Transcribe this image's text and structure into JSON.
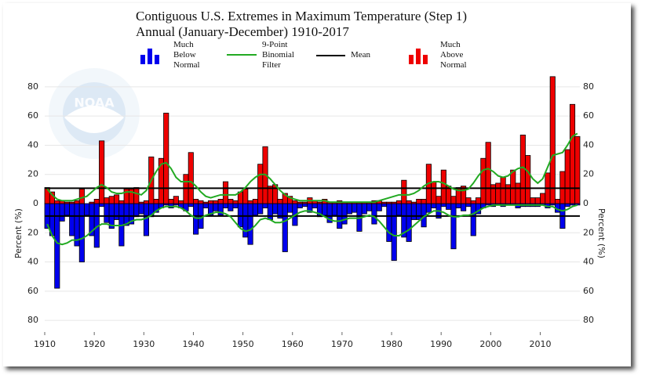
{
  "chart_data": {
    "type": "bar",
    "title": "Contiguous U.S. Extremes in Maximum Temperature (Step 1)",
    "subtitle": "Annual (January-December) 1910-2017",
    "ylabel": "Percent (%)",
    "logo": "NOAA",
    "x": [
      1910,
      1911,
      1912,
      1913,
      1914,
      1915,
      1916,
      1917,
      1918,
      1919,
      1920,
      1921,
      1922,
      1923,
      1924,
      1925,
      1926,
      1927,
      1928,
      1929,
      1930,
      1931,
      1932,
      1933,
      1934,
      1935,
      1936,
      1937,
      1938,
      1939,
      1940,
      1941,
      1942,
      1943,
      1944,
      1945,
      1946,
      1947,
      1948,
      1949,
      1950,
      1951,
      1952,
      1953,
      1954,
      1955,
      1956,
      1957,
      1958,
      1959,
      1960,
      1961,
      1962,
      1963,
      1964,
      1965,
      1966,
      1967,
      1968,
      1969,
      1970,
      1971,
      1972,
      1973,
      1974,
      1975,
      1976,
      1977,
      1978,
      1979,
      1980,
      1981,
      1982,
      1983,
      1984,
      1985,
      1986,
      1987,
      1988,
      1989,
      1990,
      1991,
      1992,
      1993,
      1994,
      1995,
      1996,
      1997,
      1998,
      1999,
      2000,
      2001,
      2002,
      2003,
      2004,
      2005,
      2006,
      2007,
      2008,
      2009,
      2010,
      2011,
      2012,
      2013,
      2014,
      2015,
      2016,
      2017
    ],
    "xlim": [
      1910,
      2018
    ],
    "xticks": [
      1910,
      1920,
      1930,
      1940,
      1950,
      1960,
      1970,
      1980,
      1990,
      2000,
      2010
    ],
    "ylim": [
      -88,
      88
    ],
    "yticks": [
      {
        "value": -80,
        "label": "80"
      },
      {
        "value": -60,
        "label": "60"
      },
      {
        "value": -40,
        "label": "40"
      },
      {
        "value": -20,
        "label": "20"
      },
      0,
      20,
      40,
      60,
      80
    ],
    "grid": true,
    "series": [
      {
        "name": "Much Below Normal",
        "color": "#0000ee",
        "values": [
          -17,
          -22,
          -58,
          -12,
          -8,
          -22,
          -29,
          -40,
          -8,
          -22,
          -30,
          -2,
          -13,
          -17,
          -11,
          -29,
          -15,
          -14,
          -9,
          -7,
          -22,
          -9,
          -6,
          -3,
          -1,
          -3,
          -1,
          -3,
          -5,
          -2,
          -21,
          -17,
          -3,
          -8,
          -5,
          -8,
          -3,
          -5,
          -3,
          -16,
          -23,
          -28,
          -8,
          -7,
          -3,
          -11,
          -7,
          -10,
          -33,
          -6,
          -15,
          -3,
          -2,
          -6,
          -3,
          -9,
          -8,
          -13,
          -8,
          -17,
          -14,
          -7,
          -6,
          -19,
          -7,
          -5,
          -14,
          -5,
          -2,
          -26,
          -39,
          -8,
          -23,
          -26,
          -11,
          -11,
          -16,
          -6,
          -3,
          -10,
          -2,
          -4,
          -31,
          -3,
          -5,
          -2,
          -22,
          -7,
          -3,
          -1,
          -2,
          -1,
          -2,
          -1,
          -1,
          -3,
          -2,
          -2,
          -2,
          -2,
          -1,
          -3,
          -1,
          -6,
          -17,
          -2,
          -1,
          -1
        ]
      },
      {
        "name": "Much Above Normal",
        "color": "#ee0000",
        "values": [
          11,
          8,
          2,
          2,
          1,
          1,
          2,
          10,
          0,
          1,
          3,
          43,
          4,
          5,
          6,
          2,
          10,
          10,
          11,
          1,
          2,
          32,
          3,
          31,
          62,
          3,
          5,
          2,
          20,
          35,
          3,
          2,
          1,
          2,
          2,
          3,
          15,
          3,
          2,
          8,
          10,
          2,
          3,
          27,
          39,
          12,
          13,
          3,
          7,
          5,
          2,
          1,
          1,
          4,
          2,
          1,
          3,
          1,
          1,
          2,
          1,
          1,
          1,
          1,
          1,
          1,
          2,
          2,
          1,
          1,
          1,
          2,
          16,
          2,
          1,
          3,
          3,
          27,
          15,
          5,
          23,
          12,
          5,
          11,
          12,
          4,
          2,
          4,
          31,
          42,
          13,
          14,
          18,
          13,
          23,
          14,
          47,
          33,
          4,
          4,
          7,
          21,
          87,
          3,
          22,
          37,
          68,
          46
        ]
      }
    ],
    "filter": {
      "name": "9-Point Binomial Filter",
      "color": "#22aa22",
      "above": [
        10,
        6,
        3,
        2,
        2,
        2,
        3,
        4,
        5,
        8,
        11,
        13,
        11,
        8,
        7,
        7,
        8,
        8,
        7,
        6,
        9,
        16,
        22,
        27,
        28,
        24,
        18,
        15,
        15,
        15,
        12,
        8,
        5,
        4,
        5,
        6,
        6,
        6,
        6,
        8,
        11,
        15,
        18,
        20,
        20,
        17,
        13,
        9,
        6,
        4,
        3,
        2,
        2,
        2,
        2,
        2,
        2,
        1,
        1,
        1,
        1,
        1,
        1,
        1,
        1,
        1,
        1,
        2,
        3,
        4,
        5,
        6,
        6,
        6,
        7,
        9,
        12,
        14,
        15,
        15,
        14,
        12,
        10,
        9,
        9,
        10,
        14,
        19,
        23,
        24,
        22,
        19,
        18,
        19,
        22,
        24,
        25,
        22,
        17,
        14,
        17,
        25,
        33,
        34,
        35,
        40,
        46,
        48
      ],
      "below": [
        -14,
        -22,
        -27,
        -28,
        -27,
        -25,
        -25,
        -24,
        -22,
        -19,
        -16,
        -14,
        -14,
        -15,
        -15,
        -15,
        -14,
        -12,
        -11,
        -11,
        -10,
        -8,
        -5,
        -3,
        -2,
        -2,
        -2,
        -3,
        -5,
        -8,
        -10,
        -10,
        -8,
        -7,
        -6,
        -6,
        -7,
        -9,
        -13,
        -17,
        -19,
        -18,
        -15,
        -11,
        -10,
        -11,
        -13,
        -13,
        -12,
        -10,
        -8,
        -6,
        -5,
        -5,
        -6,
        -7,
        -9,
        -11,
        -12,
        -12,
        -11,
        -10,
        -10,
        -10,
        -9,
        -8,
        -9,
        -12,
        -16,
        -20,
        -22,
        -22,
        -20,
        -18,
        -15,
        -12,
        -9,
        -7,
        -5,
        -5,
        -6,
        -8,
        -9,
        -9,
        -8,
        -8,
        -7,
        -5,
        -3,
        -2,
        -1,
        -1,
        -1,
        -1,
        -1,
        -1,
        -1,
        -1,
        -1,
        -1,
        -1,
        -2,
        -2,
        -4,
        -5,
        -4,
        -2,
        -1
      ]
    },
    "mean": {
      "name": "Mean",
      "color": "#000000",
      "values": [
        10.5,
        -8.5
      ]
    }
  }
}
